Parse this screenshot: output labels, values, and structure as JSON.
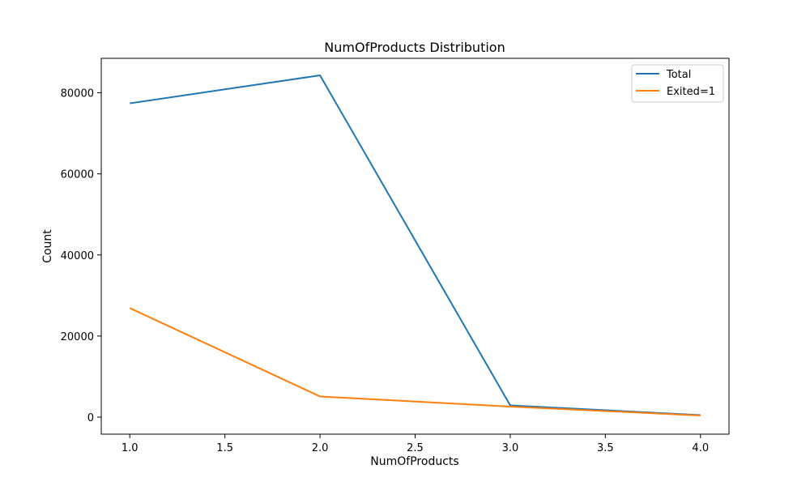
{
  "chart_data": {
    "type": "line",
    "title": "NumOfProducts Distribution",
    "xlabel": "NumOfProducts",
    "ylabel": "Count",
    "x": [
      1.0,
      2.0,
      3.0,
      4.0
    ],
    "xlim": [
      0.85,
      4.15
    ],
    "ylim": [
      -4200,
      88500
    ],
    "xticks": [
      1.0,
      1.5,
      2.0,
      2.5,
      3.0,
      3.5,
      4.0
    ],
    "xtick_labels": [
      "1.0",
      "1.5",
      "2.0",
      "2.5",
      "3.0",
      "3.5",
      "4.0"
    ],
    "yticks": [
      0,
      20000,
      40000,
      60000,
      80000
    ],
    "ytick_labels": [
      "0",
      "20000",
      "40000",
      "60000",
      "80000"
    ],
    "grid": false,
    "legend_position": "top-right",
    "series": [
      {
        "name": "Total",
        "color": "#1f77b4",
        "values": [
          77400,
          84300,
          2900,
          500
        ]
      },
      {
        "name": "Exited=1",
        "color": "#ff7f0e",
        "values": [
          26900,
          5100,
          2600,
          400
        ]
      }
    ]
  }
}
